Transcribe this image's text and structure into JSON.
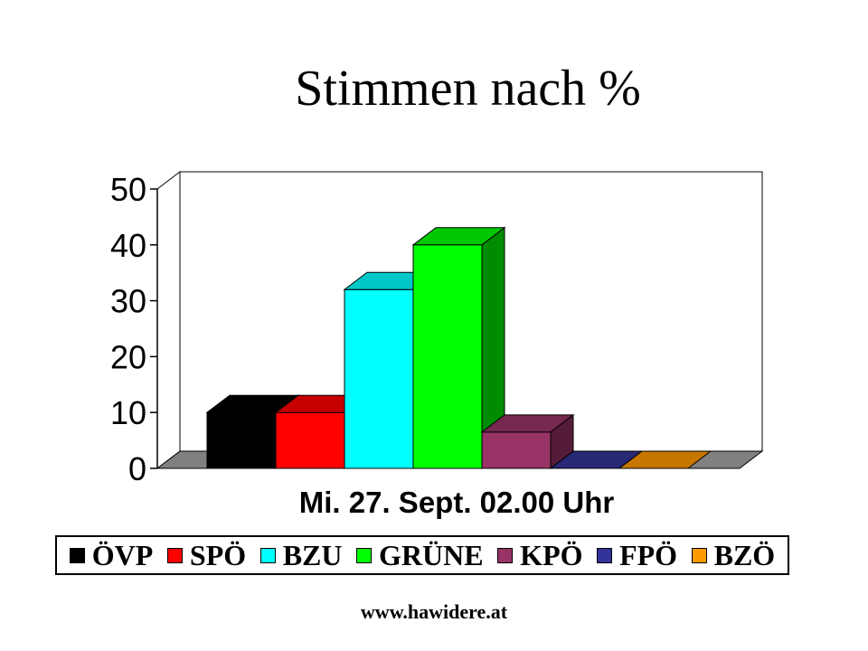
{
  "title": "Stimmen nach %",
  "footer": "www.hawidere.at",
  "chart_data": {
    "type": "bar",
    "title": "Stimmen nach %",
    "xlabel": "",
    "ylabel": "",
    "categories": [
      "Mi. 27. Sept. 02.00 Uhr"
    ],
    "ylim": [
      0,
      50
    ],
    "yticks": [
      0,
      10,
      20,
      30,
      40,
      50
    ],
    "grid": false,
    "legend_position": "bottom",
    "three_d": true,
    "series": [
      {
        "name": "ÖVP",
        "values": [
          10
        ],
        "color": "#000000"
      },
      {
        "name": "SPÖ",
        "values": [
          10
        ],
        "color": "#ff0000"
      },
      {
        "name": "BZU",
        "values": [
          32
        ],
        "color": "#00ffff"
      },
      {
        "name": "GRÜNE",
        "values": [
          40
        ],
        "color": "#00ff00"
      },
      {
        "name": "KPÖ",
        "values": [
          6.5
        ],
        "color": "#993366"
      },
      {
        "name": "FPÖ",
        "values": [
          0
        ],
        "color": "#333399"
      },
      {
        "name": "BZÖ",
        "values": [
          0
        ],
        "color": "#ff9900"
      }
    ]
  }
}
